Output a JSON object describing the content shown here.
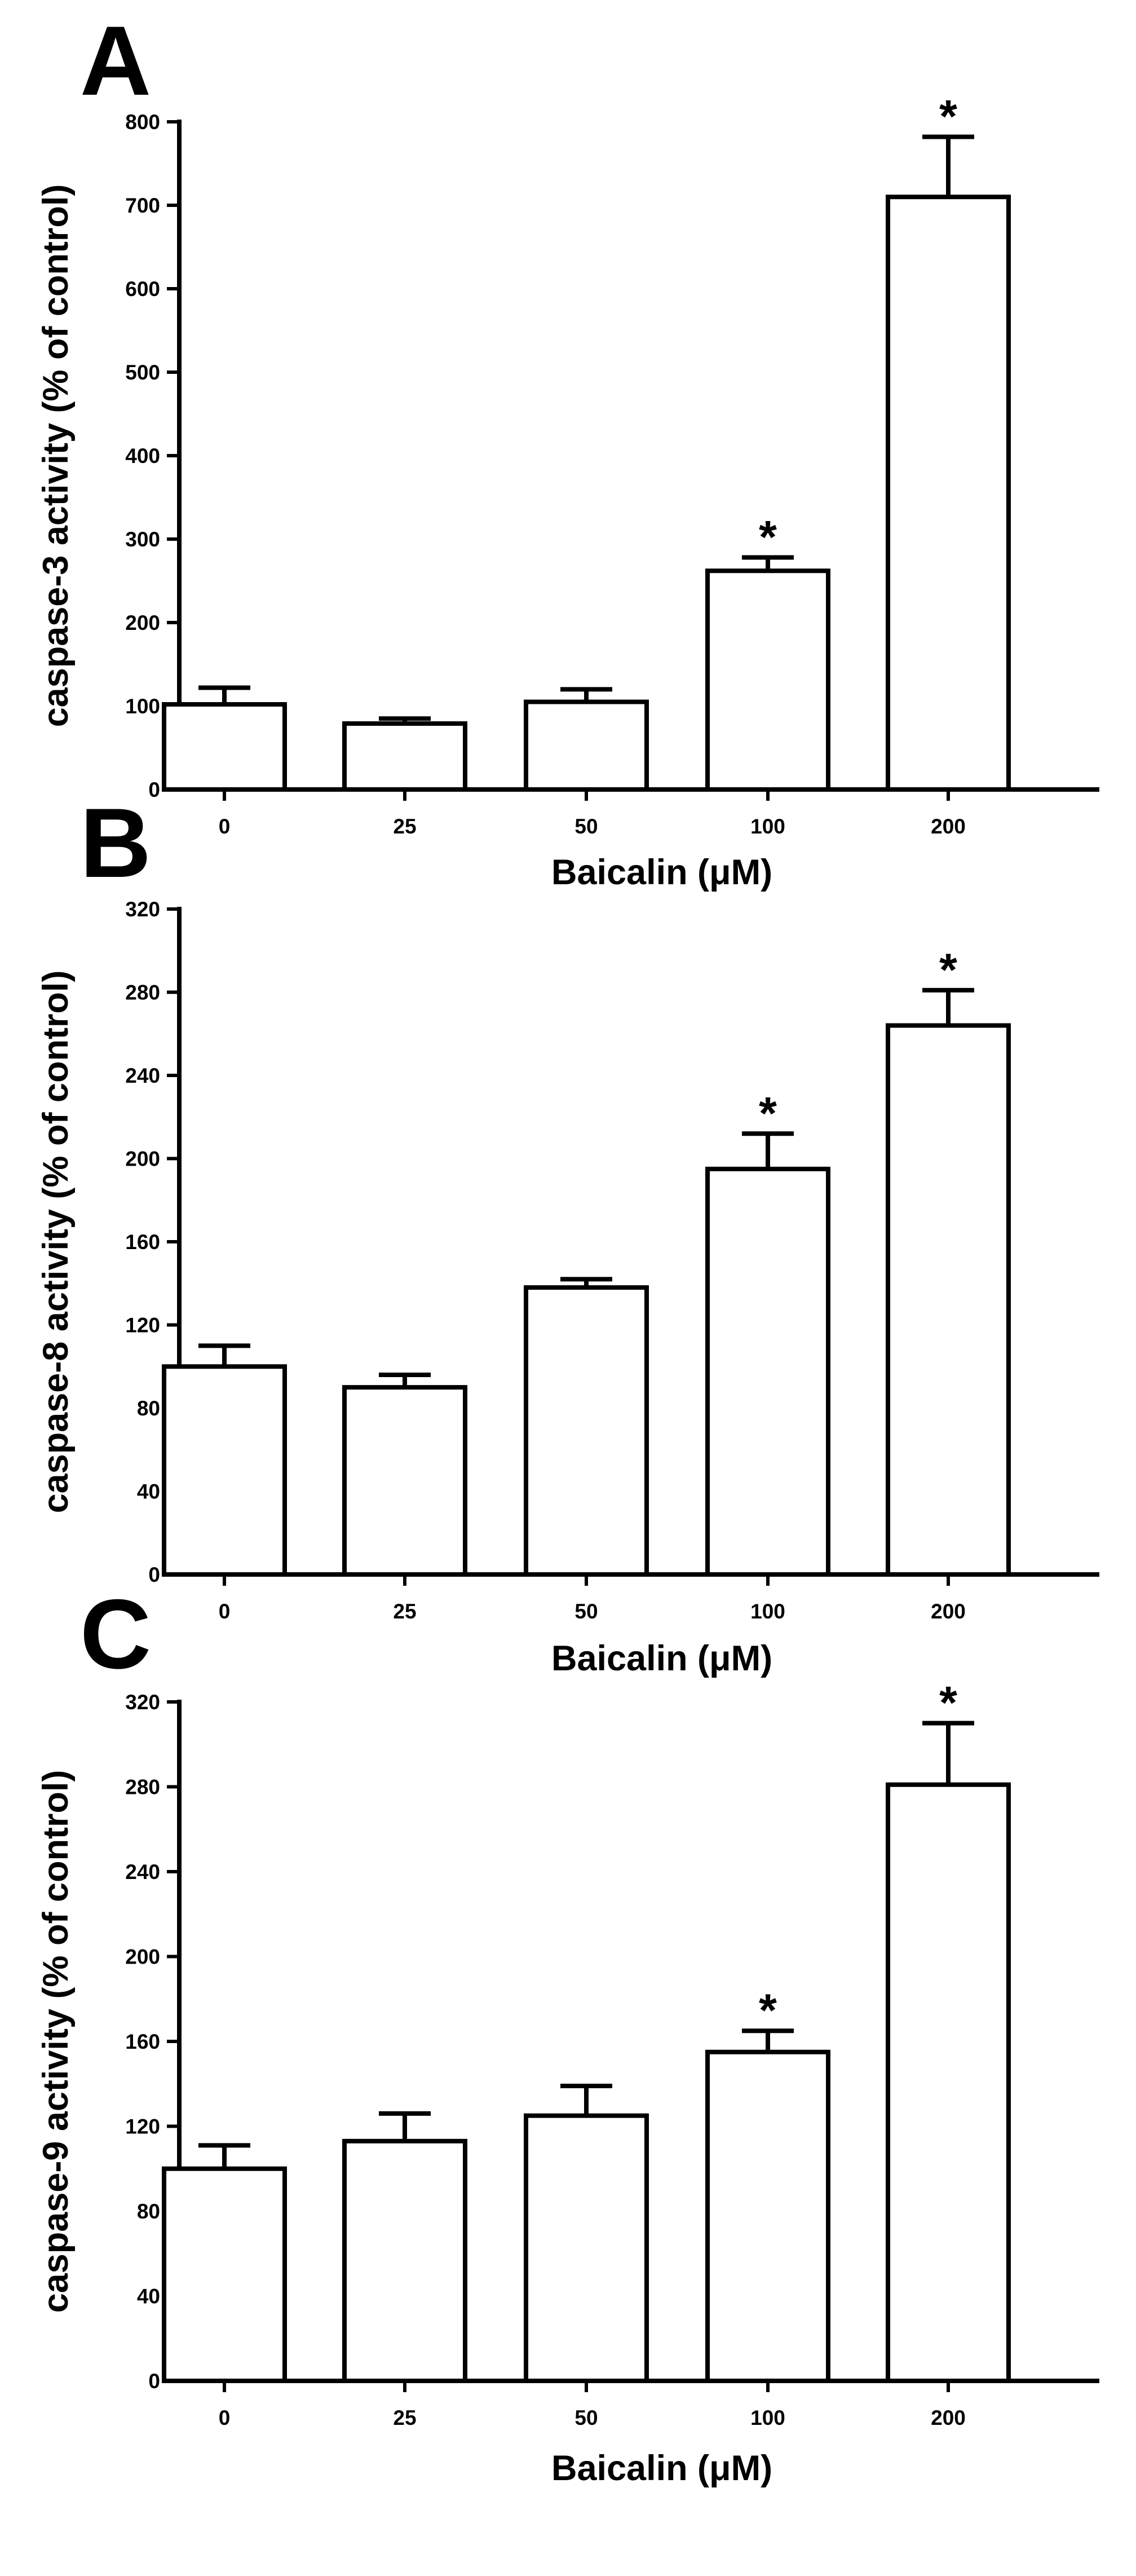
{
  "chart_data": [
    {
      "panel": "A",
      "type": "bar",
      "categories": [
        "0",
        "25",
        "50",
        "100",
        "200"
      ],
      "values": [
        102,
        79,
        105,
        262,
        710
      ],
      "errors": [
        20,
        6,
        15,
        16,
        72
      ],
      "significant": [
        false,
        false,
        false,
        true,
        true
      ],
      "marker": "*",
      "title": "",
      "xlabel": "Baicalin (μM)",
      "ylabel": "caspase-3 activity (% of control)",
      "ylim": [
        0,
        800
      ],
      "yticks": [
        0,
        100,
        200,
        300,
        400,
        500,
        600,
        700,
        800
      ],
      "grid": false
    },
    {
      "panel": "B",
      "type": "bar",
      "categories": [
        "0",
        "25",
        "50",
        "100",
        "200"
      ],
      "values": [
        100,
        90,
        138,
        195,
        264
      ],
      "errors": [
        10,
        6,
        4,
        17,
        17
      ],
      "significant": [
        false,
        false,
        false,
        true,
        true
      ],
      "marker": "*",
      "title": "",
      "xlabel": "Baicalin (μM)",
      "ylabel": "caspase-8 activity (% of control)",
      "ylim": [
        0,
        320
      ],
      "yticks": [
        0,
        40,
        80,
        120,
        160,
        200,
        240,
        280,
        320
      ],
      "grid": false
    },
    {
      "panel": "C",
      "type": "bar",
      "categories": [
        "0",
        "25",
        "50",
        "100",
        "200"
      ],
      "values": [
        100,
        113,
        125,
        155,
        281
      ],
      "errors": [
        11,
        13,
        14,
        10,
        29
      ],
      "significant": [
        false,
        false,
        false,
        true,
        true
      ],
      "marker": "*",
      "title": "",
      "xlabel": "Baicalin (μM)",
      "ylabel": "caspase-9 activity (% of control)",
      "ylim": [
        0,
        320
      ],
      "yticks": [
        0,
        40,
        80,
        120,
        160,
        200,
        240,
        280,
        320
      ],
      "grid": false
    }
  ]
}
